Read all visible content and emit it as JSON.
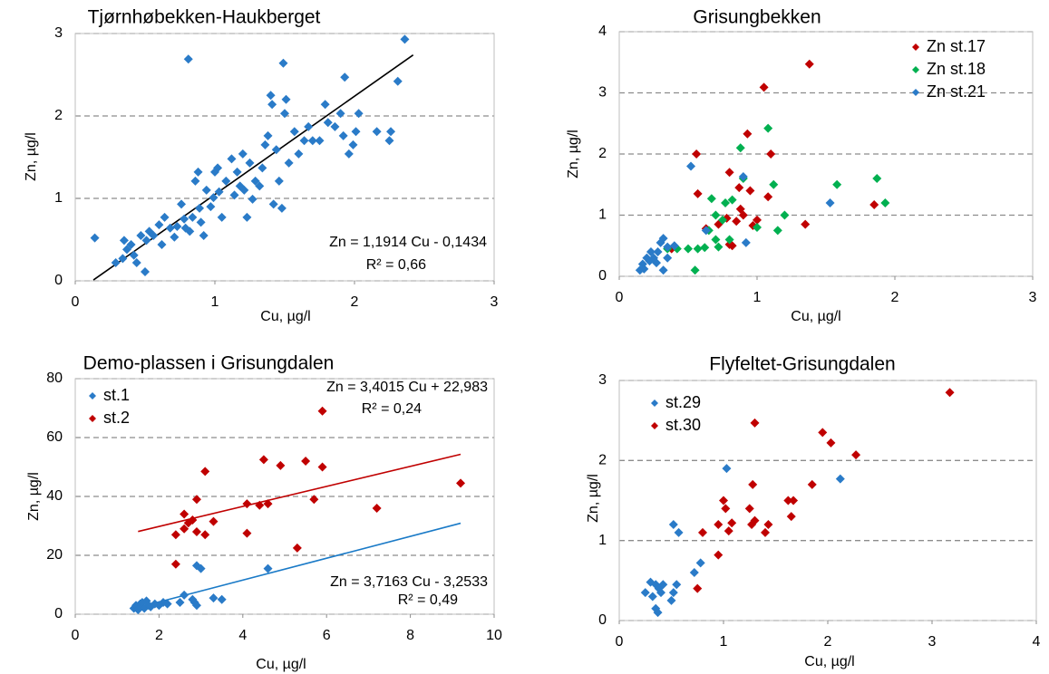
{
  "chart_data": [
    {
      "type": "scatter",
      "title": "Tjørnhøbekken-Haukberget",
      "x_label": "Cu, µg/l",
      "y_label": "Zn, µg/l",
      "xlim": [
        0,
        3
      ],
      "ylim": [
        0,
        3
      ],
      "xticks": [
        0,
        1,
        2,
        3
      ],
      "yticks": [
        0,
        1,
        2,
        3
      ],
      "grid": true,
      "series": [
        {
          "color": "#2a7bc8",
          "x": [
            0.14,
            0.29,
            0.34,
            0.37,
            0.35,
            0.4,
            0.42,
            0.44,
            0.47,
            0.5,
            0.51,
            0.53,
            0.56,
            0.6,
            0.62,
            0.64,
            0.68,
            0.71,
            0.73,
            0.76,
            0.78,
            0.79,
            0.81,
            0.82,
            0.84,
            0.86,
            0.88,
            0.89,
            0.9,
            0.92,
            0.94,
            0.97,
            0.99,
            1.0,
            1.02,
            1.03,
            1.05,
            1.08,
            1.12,
            1.14,
            1.16,
            1.18,
            1.2,
            1.21,
            1.23,
            1.25,
            1.27,
            1.29,
            1.32,
            1.34,
            1.36,
            1.38,
            1.4,
            1.41,
            1.42,
            1.44,
            1.46,
            1.48,
            1.49,
            1.5,
            1.51,
            1.53,
            1.57,
            1.6,
            1.64,
            1.67,
            1.7,
            1.75,
            1.79,
            1.81,
            1.86,
            1.9,
            1.92,
            1.93,
            1.96,
            1.99,
            2.01,
            2.03,
            2.16,
            2.25,
            2.26,
            2.31,
            2.36
          ],
          "y": [
            0.52,
            0.22,
            0.27,
            0.38,
            0.49,
            0.44,
            0.31,
            0.22,
            0.55,
            0.11,
            0.49,
            0.6,
            0.55,
            0.68,
            0.44,
            0.77,
            0.64,
            0.53,
            0.66,
            0.93,
            0.75,
            0.64,
            2.69,
            0.6,
            0.77,
            1.21,
            1.32,
            0.88,
            0.71,
            0.55,
            1.1,
            0.9,
            1.01,
            1.32,
            1.37,
            1.08,
            0.77,
            1.21,
            1.48,
            1.04,
            1.32,
            1.15,
            1.54,
            1.1,
            0.77,
            1.43,
            0.99,
            1.21,
            1.15,
            1.37,
            1.65,
            1.76,
            2.25,
            2.14,
            0.93,
            1.59,
            1.21,
            0.88,
            2.64,
            2.03,
            2.2,
            1.43,
            1.81,
            1.54,
            1.7,
            1.87,
            1.7,
            1.7,
            2.14,
            1.92,
            1.87,
            2.03,
            1.76,
            2.47,
            1.54,
            1.65,
            1.81,
            2.03,
            1.81,
            1.7,
            1.81,
            2.42,
            2.93
          ],
          "trendline": {
            "x": [
              0.13,
              2.42
            ],
            "y": [
              0.01,
              2.74
            ],
            "color": "#000000"
          },
          "annotations": [
            "Zn = 1,1914 Cu - 0,1434",
            "R² = 0,66"
          ]
        }
      ]
    },
    {
      "type": "scatter",
      "title": "Grisungbekken",
      "x_label": "Cu, µg/l",
      "y_label": "Zn, µg/l",
      "xlim": [
        0,
        3
      ],
      "ylim": [
        0,
        4
      ],
      "xticks": [
        0,
        1,
        2,
        3
      ],
      "yticks": [
        0,
        1,
        2,
        3,
        4
      ],
      "grid": true,
      "legend": "upper right",
      "series": [
        {
          "name": "Zn st.17",
          "color": "#c00000",
          "x": [
            0.38,
            0.56,
            0.57,
            0.63,
            0.72,
            0.78,
            0.8,
            0.8,
            0.82,
            0.85,
            0.87,
            0.88,
            0.9,
            0.93,
            0.95,
            0.97,
            1.0,
            1.05,
            1.08,
            1.1,
            1.35,
            1.38,
            1.85
          ],
          "y": [
            0.45,
            2.0,
            1.35,
            0.78,
            0.85,
            0.95,
            1.7,
            0.52,
            0.5,
            0.9,
            1.45,
            1.1,
            1.0,
            2.33,
            1.4,
            0.83,
            0.92,
            3.09,
            1.3,
            2.0,
            0.85,
            3.47,
            1.17
          ]
        },
        {
          "name": "Zn st.18",
          "color": "#00b050",
          "x": [
            0.35,
            0.42,
            0.5,
            0.55,
            0.57,
            0.62,
            0.65,
            0.67,
            0.7,
            0.7,
            0.72,
            0.75,
            0.77,
            0.8,
            0.82,
            0.88,
            0.9,
            1.0,
            1.08,
            1.12,
            1.15,
            1.2,
            1.58,
            1.87,
            1.93
          ],
          "y": [
            0.45,
            0.45,
            0.45,
            0.1,
            0.45,
            0.47,
            0.75,
            1.27,
            1.0,
            0.6,
            0.48,
            0.92,
            1.2,
            0.6,
            1.25,
            2.1,
            1.6,
            0.8,
            2.42,
            1.5,
            0.75,
            1.0,
            1.5,
            1.6,
            1.2
          ]
        },
        {
          "name": "Zn st.21",
          "color": "#2a7bc8",
          "x": [
            0.15,
            0.17,
            0.18,
            0.2,
            0.22,
            0.23,
            0.25,
            0.27,
            0.28,
            0.3,
            0.32,
            0.32,
            0.35,
            0.4,
            0.52,
            0.63,
            0.92,
            0.9,
            1.53,
            0.35
          ],
          "y": [
            0.1,
            0.2,
            0.12,
            0.3,
            0.25,
            0.4,
            0.3,
            0.22,
            0.4,
            0.55,
            0.62,
            0.1,
            0.3,
            0.5,
            1.8,
            0.75,
            0.55,
            1.63,
            1.2,
            0.48
          ]
        }
      ]
    },
    {
      "type": "scatter",
      "title": "Demo-plassen i Grisungdalen",
      "x_label": "Cu, µg/l",
      "y_label": "Zn, µg/l",
      "xlim": [
        0,
        10
      ],
      "ylim": [
        0,
        80
      ],
      "xticks": [
        0,
        2,
        4,
        6,
        8,
        10
      ],
      "yticks": [
        0,
        20,
        40,
        60,
        80
      ],
      "grid": true,
      "legend": "upper left",
      "series": [
        {
          "name": "st.1",
          "color": "#2a7bc8",
          "x": [
            1.4,
            1.45,
            1.5,
            1.55,
            1.6,
            1.65,
            1.7,
            1.75,
            1.8,
            1.9,
            2.0,
            2.1,
            2.2,
            2.5,
            2.6,
            2.8,
            2.85,
            2.9,
            2.9,
            3.0,
            3.3,
            3.5,
            4.6,
            1.5
          ],
          "y": [
            2,
            3,
            2.5,
            3.5,
            4,
            2,
            4.5,
            3,
            2.5,
            3.5,
            3,
            4,
            3.5,
            4,
            6.5,
            5,
            4,
            3,
            16.5,
            15.5,
            5.5,
            5,
            15.5,
            1.5
          ],
          "trendline": {
            "x": [
              1.5,
              9.2
            ],
            "y": [
              2.3,
              30.9
            ],
            "color": "#1a7ac7"
          },
          "annotations": [
            "Zn = 3,7163 Cu - 3,2533",
            "R² = 0,49"
          ]
        },
        {
          "name": "st.2",
          "color": "#c00000",
          "x": [
            2.4,
            2.4,
            2.6,
            2.6,
            2.7,
            2.8,
            2.9,
            2.9,
            3.1,
            3.1,
            3.3,
            4.1,
            4.1,
            4.4,
            4.5,
            4.6,
            4.9,
            5.3,
            5.5,
            5.7,
            5.9,
            5.9,
            7.2,
            9.2
          ],
          "y": [
            27,
            17,
            34,
            29,
            31,
            32,
            28,
            39,
            27,
            48.5,
            31.5,
            37.5,
            27.5,
            37,
            52.5,
            37.5,
            50.5,
            22.5,
            52,
            39,
            50,
            69,
            36,
            44.5
          ],
          "trendline": {
            "x": [
              1.5,
              9.2
            ],
            "y": [
              28.1,
              54.3
            ],
            "color": "#c00000"
          },
          "annotations": [
            "Zn = 3,4015 Cu + 22,983",
            "R² = 0,24"
          ]
        }
      ]
    },
    {
      "type": "scatter",
      "title": "Flyfeltet-Grisungdalen",
      "x_label": "Cu, µg/l",
      "y_label": "Zn, µg/l",
      "xlim": [
        0,
        4
      ],
      "ylim": [
        0,
        3
      ],
      "xticks": [
        0,
        1,
        2,
        3,
        4
      ],
      "yticks": [
        0,
        1,
        2,
        3
      ],
      "grid": true,
      "legend": "upper left",
      "series": [
        {
          "name": "st.29",
          "color": "#2a7bc8",
          "x": [
            0.25,
            0.3,
            0.32,
            0.35,
            0.35,
            0.37,
            0.38,
            0.4,
            0.42,
            0.5,
            0.52,
            0.55,
            0.52,
            0.57,
            0.72,
            0.78,
            1.03,
            2.12
          ],
          "y": [
            0.35,
            0.48,
            0.3,
            0.45,
            0.15,
            0.1,
            0.4,
            0.35,
            0.45,
            0.25,
            0.35,
            0.45,
            1.2,
            1.1,
            0.6,
            0.72,
            1.9,
            1.77
          ]
        },
        {
          "name": "st.30",
          "color": "#c00000",
          "x": [
            0.75,
            0.8,
            0.95,
            0.95,
            1.0,
            1.02,
            1.05,
            1.08,
            1.25,
            1.27,
            1.28,
            1.3,
            1.3,
            1.4,
            1.43,
            1.62,
            1.65,
            1.67,
            1.85,
            1.95,
            2.03,
            2.27,
            3.17
          ],
          "y": [
            0.4,
            1.1,
            0.82,
            1.2,
            1.5,
            1.4,
            1.12,
            1.22,
            1.4,
            1.2,
            1.7,
            1.25,
            2.47,
            1.1,
            1.2,
            1.5,
            1.3,
            1.5,
            1.7,
            2.35,
            2.22,
            2.07,
            2.85
          ]
        }
      ]
    }
  ]
}
